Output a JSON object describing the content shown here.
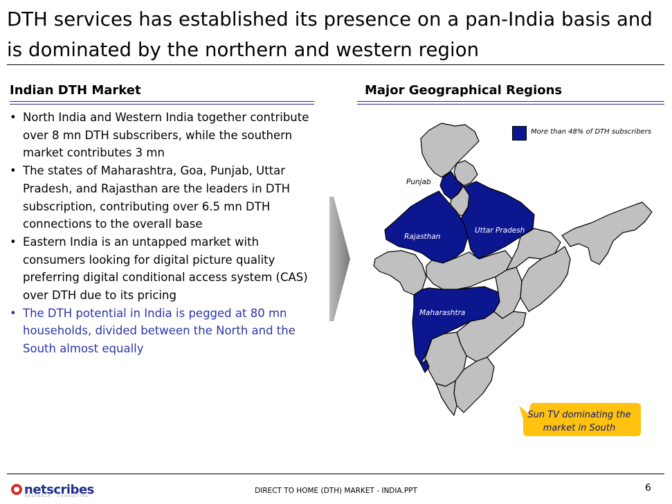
{
  "title": "DTH services has established its presence on a pan-India basis and is dominated by the northern and western region",
  "left_section": {
    "heading": "Indian DTH Market",
    "bullets": [
      "North India and Western India together contribute over 8 mn DTH subscribers, while the southern market contributes 3 mn",
      "The states of Maharashtra, Goa, Punjab, Uttar Pradesh, and Rajasthan are the leaders in DTH subscription, contributing over 6.5 mn DTH connections to the overall base",
      "Eastern India is an untapped market with consumers looking for digital picture quality preferring digital conditional access system (CAS) over DTH due to its pricing",
      "The DTH potential in India is pegged at 80 mn households, divided between the North and the South almost equally"
    ],
    "highlight_color": "#2a35a8"
  },
  "right_section": {
    "heading": "Major Geographical Regions",
    "legend": "More than 48% of DTH subscribers",
    "labels": {
      "punjab": "Punjab",
      "rajasthan": "Rajasthan",
      "uttar_pradesh": "Uttar Pradesh",
      "maharashtra": "Maharashtra"
    },
    "callout": "Sun TV dominating the market in South",
    "colors": {
      "highlight_state": "#0c168f",
      "other_state": "#c0c0c0",
      "callout": "#ffc20e"
    }
  },
  "footer": {
    "logo": "netscribes",
    "logo_tagline": "RESEARCH · CONSULTING",
    "center_text": "DIRECT TO HOME (DTH) MARKET - INDIA.PPT",
    "page_number": "6"
  }
}
